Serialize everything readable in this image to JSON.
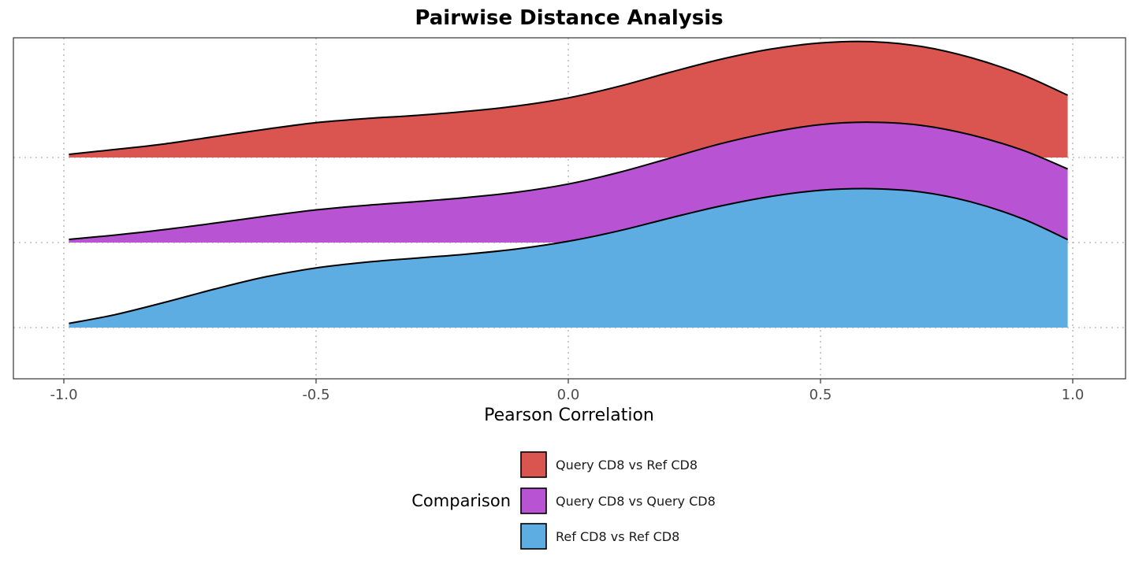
{
  "chart_data": {
    "type": "area",
    "subtype": "ridgeline-density",
    "title": "Pairwise Distance Analysis",
    "xlabel": "Pearson Correlation",
    "ylabel": "",
    "xlim": [
      -1.1,
      1.1
    ],
    "x_ticks": [
      -1.0,
      -0.5,
      0.0,
      0.5,
      1.0
    ],
    "x_tick_labels": [
      "-1.0",
      "-0.5",
      "0.0",
      "0.5",
      "1.0"
    ],
    "grid": {
      "x_major": true,
      "y_baselines": true,
      "style": "dotted",
      "color": "#bdbdbd"
    },
    "legend": {
      "title": "Comparison",
      "placement": "bottom"
    },
    "series": [
      {
        "name": "Query CD8 vs Ref CD8",
        "color": "#DB5550",
        "x": [
          -0.99,
          -0.9,
          -0.8,
          -0.7,
          -0.6,
          -0.5,
          -0.4,
          -0.3,
          -0.2,
          -0.1,
          0.0,
          0.1,
          0.2,
          0.3,
          0.4,
          0.5,
          0.6,
          0.7,
          0.8,
          0.9,
          0.99
        ],
        "density": [
          0.03,
          0.076,
          0.13,
          0.2,
          0.27,
          0.332,
          0.372,
          0.402,
          0.441,
          0.493,
          0.569,
          0.679,
          0.811,
          0.935,
          1.034,
          1.094,
          1.106,
          1.06,
          0.951,
          0.79,
          0.595
        ]
      },
      {
        "name": "Query CD8 vs Query CD8",
        "color": "#B854D4",
        "x": [
          -0.99,
          -0.9,
          -0.8,
          -0.7,
          -0.6,
          -0.5,
          -0.4,
          -0.3,
          -0.2,
          -0.1,
          0.0,
          0.1,
          0.2,
          0.3,
          0.4,
          0.5,
          0.6,
          0.7,
          0.8,
          0.9,
          0.99
        ],
        "density": [
          0.03,
          0.071,
          0.124,
          0.186,
          0.252,
          0.312,
          0.356,
          0.391,
          0.431,
          0.482,
          0.559,
          0.669,
          0.804,
          0.941,
          1.05,
          1.126,
          1.149,
          1.119,
          1.026,
          0.883,
          0.702
        ]
      },
      {
        "name": "Ref CD8 vs Ref CD8",
        "color": "#5DADE2",
        "x": [
          -0.99,
          -0.9,
          -0.8,
          -0.7,
          -0.6,
          -0.5,
          -0.4,
          -0.3,
          -0.2,
          -0.1,
          0.0,
          0.1,
          0.2,
          0.3,
          0.4,
          0.5,
          0.6,
          0.7,
          0.8,
          0.9,
          0.99
        ],
        "density": [
          0.04,
          0.122,
          0.241,
          0.369,
          0.485,
          0.569,
          0.625,
          0.664,
          0.702,
          0.752,
          0.824,
          0.923,
          1.044,
          1.159,
          1.251,
          1.311,
          1.326,
          1.294,
          1.198,
          1.04,
          0.84
        ]
      }
    ]
  }
}
